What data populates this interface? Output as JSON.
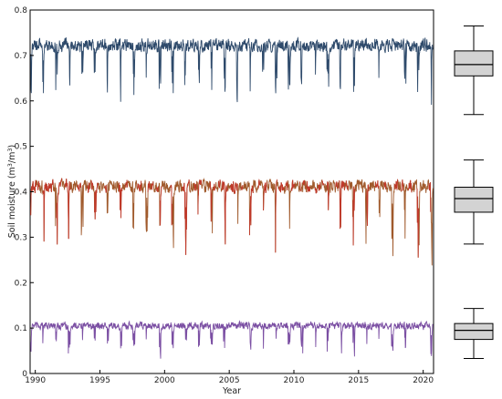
{
  "chart_data": [
    {
      "type": "line",
      "title": "",
      "xlabel": "Year",
      "ylabel_main": "Soil moisture (m",
      "ylabel_sup1": "3",
      "ylabel_mid": "/m",
      "ylabel_sup2": "3",
      "ylabel_end": ")",
      "xlim": [
        1989.6,
        2020.8
      ],
      "ylim": [
        0,
        0.8
      ],
      "x_ticks": [
        1990,
        1995,
        2000,
        2005,
        2010,
        2015,
        2020
      ],
      "x_tick_labels": [
        "1990",
        "1995",
        "2000",
        "2005",
        "2010",
        "2015",
        "2020"
      ],
      "y_ticks": [
        0,
        0.1,
        0.2,
        0.3,
        0.4,
        0.5,
        0.6,
        0.7,
        0.8
      ],
      "y_tick_labels": [
        "0",
        "0.1",
        "0.2",
        "0.3",
        "0.4",
        "0.5",
        "0.6",
        "0.7",
        "0.8"
      ],
      "grid": false,
      "legend": "none",
      "series": [
        {
          "color": "#2e4a6b",
          "typical_range": [
            0.64,
            0.75
          ],
          "mean": 0.68,
          "min": 0.545,
          "max": 0.76
        },
        {
          "color": "#a05a2c",
          "alt_color": "#c0392b",
          "typical_range": [
            0.33,
            0.44
          ],
          "mean": 0.385,
          "min": 0.215,
          "max": 0.45
        },
        {
          "color": "#7b4fa3",
          "typical_range": [
            0.06,
            0.12
          ],
          "mean": 0.095,
          "min": 0.01,
          "max": 0.13
        }
      ]
    },
    {
      "type": "box",
      "ylim": [
        0,
        0.8
      ],
      "boxes": [
        {
          "whisker_low": 0.57,
          "q1": 0.655,
          "median": 0.68,
          "q3": 0.71,
          "whisker_high": 0.765
        },
        {
          "whisker_low": 0.285,
          "q1": 0.355,
          "median": 0.385,
          "q3": 0.41,
          "whisker_high": 0.47
        },
        {
          "whisker_low": 0.033,
          "q1": 0.075,
          "median": 0.095,
          "q3": 0.11,
          "whisker_high": 0.143
        }
      ],
      "box_fill": "#d3d3d3"
    }
  ]
}
